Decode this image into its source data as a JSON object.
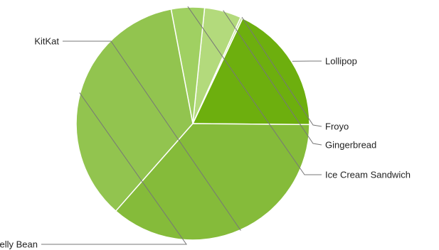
{
  "chart_data": {
    "type": "pie",
    "title": "",
    "slices": [
      {
        "label": "Lollipop",
        "value": 18.1,
        "color": "#6daf0e"
      },
      {
        "label": "Froyo",
        "value": 0.3,
        "color": "#c5e29a"
      },
      {
        "label": "Gingerbread",
        "value": 5.1,
        "color": "#b3da7c"
      },
      {
        "label": "Ice Cream Sandwich",
        "value": 4.6,
        "color": "#a0d062"
      },
      {
        "label": "Jelly Bean",
        "value": 35.5,
        "color": "#92c44f"
      },
      {
        "label": "KitKat",
        "value": 36.3,
        "color": "#85bb3a"
      }
    ],
    "legend": "labels-on-leader-lines"
  }
}
